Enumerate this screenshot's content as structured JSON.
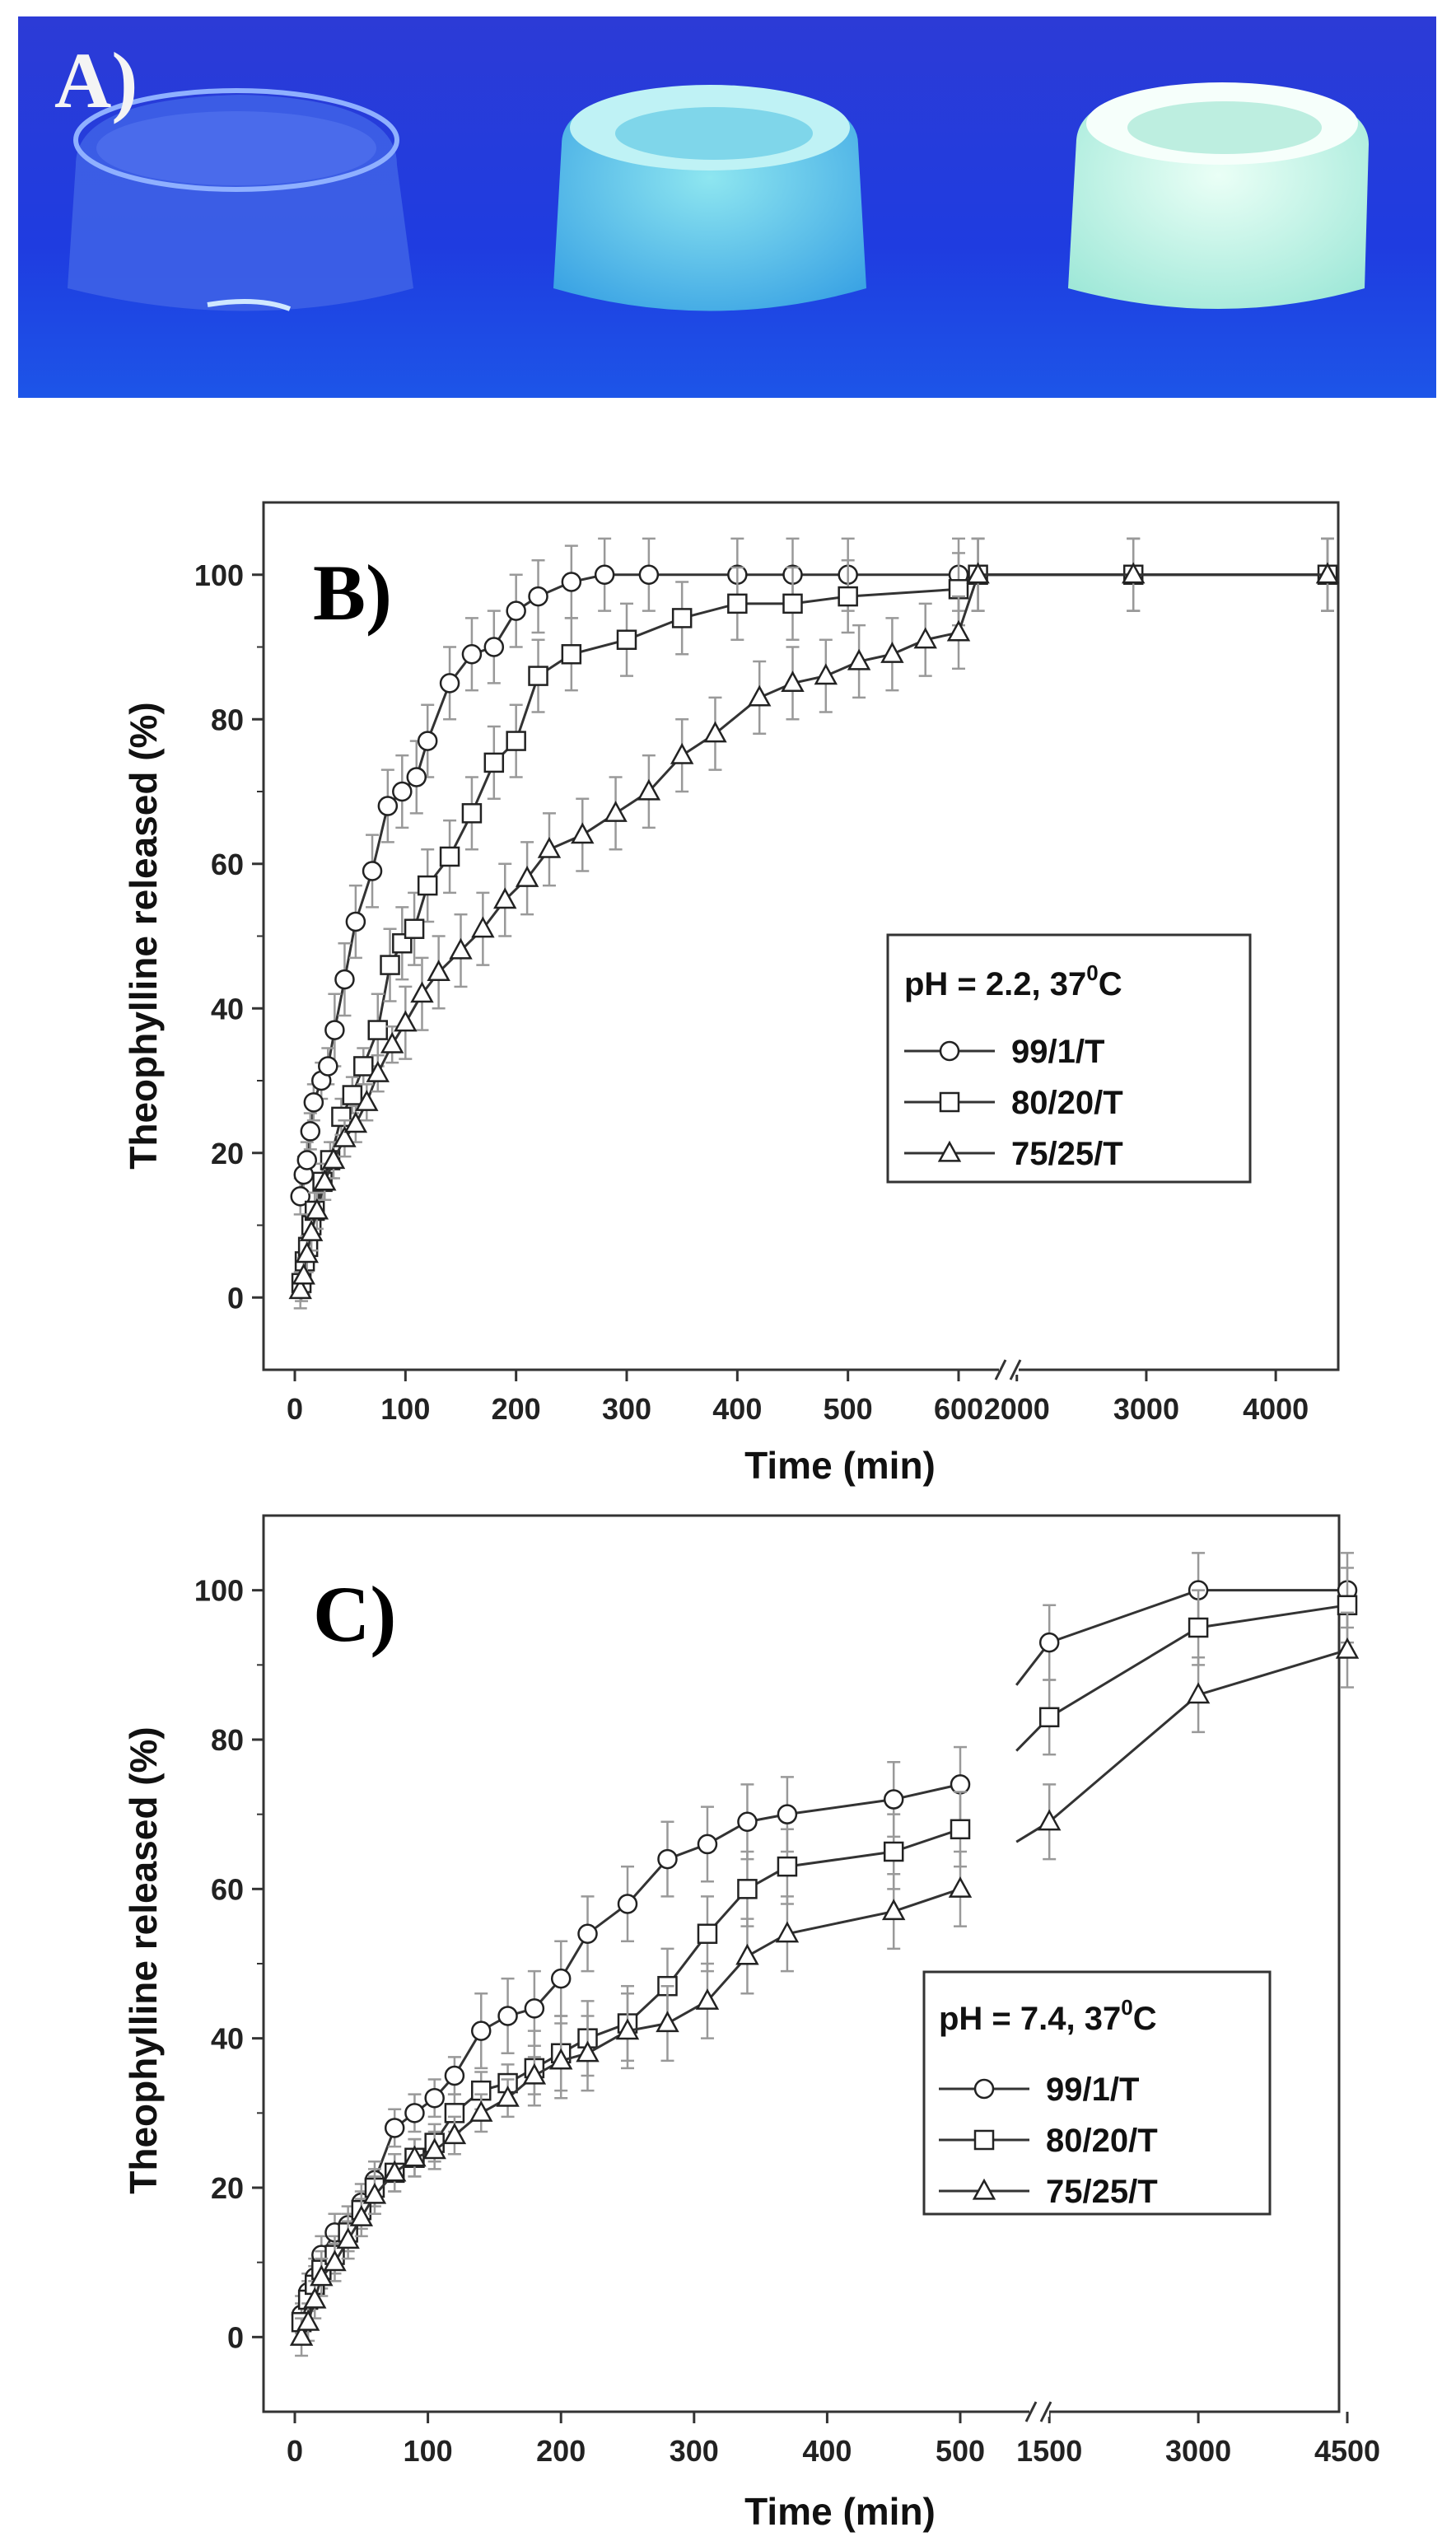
{
  "panels": {
    "a": {
      "label": "A)"
    }
  },
  "chart_data": [
    {
      "panel_label": "B)",
      "type": "line",
      "xlabel": "Time (min)",
      "ylabel": "Theophylline released (%)",
      "ylim": [
        -10,
        110
      ],
      "y_ticks": [
        "0",
        "20",
        "40",
        "60",
        "80",
        "100"
      ],
      "x_ticks_left": [
        "0",
        "100",
        "200",
        "300",
        "400",
        "500",
        "600"
      ],
      "x_ticks_right": [
        "2000",
        "3000",
        "4000"
      ],
      "x_break": true,
      "legend": {
        "title_main": "pH = 2.2, 37",
        "title_sup": "0",
        "title_end": "C",
        "entries": [
          "99/1/T",
          "80/20/T",
          "75/25/T"
        ]
      },
      "series": [
        {
          "name": "99/1/T",
          "marker": "circle",
          "points": [
            [
              5,
              14
            ],
            [
              8,
              17
            ],
            [
              11,
              19
            ],
            [
              14,
              23
            ],
            [
              17,
              27
            ],
            [
              24,
              30
            ],
            [
              30,
              32
            ],
            [
              36,
              37
            ],
            [
              45,
              44
            ],
            [
              55,
              52
            ],
            [
              70,
              59
            ],
            [
              84,
              68
            ],
            [
              97,
              70
            ],
            [
              110,
              72
            ],
            [
              120,
              77
            ],
            [
              140,
              85
            ],
            [
              160,
              89
            ],
            [
              180,
              90
            ],
            [
              200,
              95
            ],
            [
              220,
              97
            ],
            [
              250,
              99
            ],
            [
              280,
              100
            ],
            [
              320,
              100
            ],
            [
              400,
              100
            ],
            [
              450,
              100
            ],
            [
              500,
              100
            ],
            [
              600,
              100
            ],
            [
              1700,
              100
            ],
            [
              2900,
              100
            ],
            [
              4400,
              100
            ]
          ]
        },
        {
          "name": "80/20/T",
          "marker": "square",
          "points": [
            [
              6,
              2
            ],
            [
              9,
              5
            ],
            [
              12,
              7
            ],
            [
              15,
              10
            ],
            [
              18,
              12
            ],
            [
              25,
              16
            ],
            [
              32,
              19
            ],
            [
              42,
              25
            ],
            [
              52,
              28
            ],
            [
              62,
              32
            ],
            [
              75,
              37
            ],
            [
              86,
              46
            ],
            [
              97,
              49
            ],
            [
              108,
              51
            ],
            [
              120,
              57
            ],
            [
              140,
              61
            ],
            [
              160,
              67
            ],
            [
              180,
              74
            ],
            [
              200,
              77
            ],
            [
              220,
              86
            ],
            [
              250,
              89
            ],
            [
              300,
              91
            ],
            [
              350,
              94
            ],
            [
              400,
              96
            ],
            [
              450,
              96
            ],
            [
              500,
              97
            ],
            [
              600,
              98
            ],
            [
              1700,
              100
            ],
            [
              2900,
              100
            ],
            [
              4400,
              100
            ]
          ]
        },
        {
          "name": "75/25/T",
          "marker": "triangle",
          "points": [
            [
              5,
              1
            ],
            [
              8,
              3
            ],
            [
              11,
              6
            ],
            [
              15,
              9
            ],
            [
              20,
              12
            ],
            [
              27,
              16
            ],
            [
              35,
              19
            ],
            [
              45,
              22
            ],
            [
              55,
              24
            ],
            [
              65,
              27
            ],
            [
              75,
              31
            ],
            [
              88,
              35
            ],
            [
              100,
              38
            ],
            [
              115,
              42
            ],
            [
              130,
              45
            ],
            [
              150,
              48
            ],
            [
              170,
              51
            ],
            [
              190,
              55
            ],
            [
              210,
              58
            ],
            [
              230,
              62
            ],
            [
              260,
              64
            ],
            [
              290,
              67
            ],
            [
              320,
              70
            ],
            [
              350,
              75
            ],
            [
              380,
              78
            ],
            [
              420,
              83
            ],
            [
              450,
              85
            ],
            [
              480,
              86
            ],
            [
              510,
              88
            ],
            [
              540,
              89
            ],
            [
              570,
              91
            ],
            [
              600,
              92
            ],
            [
              1700,
              100
            ],
            [
              2900,
              100
            ],
            [
              4400,
              100
            ]
          ]
        }
      ]
    },
    {
      "panel_label": "C)",
      "type": "line",
      "xlabel": "Time (min)",
      "ylabel": "Theophylline released (%)",
      "ylim": [
        -10,
        110
      ],
      "y_ticks": [
        "0",
        "20",
        "40",
        "60",
        "80",
        "100"
      ],
      "x_ticks_left": [
        "0",
        "100",
        "200",
        "300",
        "400",
        "500"
      ],
      "x_ticks_right": [
        "1500",
        "3000",
        "4500"
      ],
      "x_break": true,
      "legend": {
        "title_main": "pH = 7.4, 37",
        "title_sup": "0",
        "title_end": "C",
        "entries": [
          "99/1/T",
          "80/20/T",
          "75/25/T"
        ]
      },
      "series": [
        {
          "name": "99/1/T",
          "marker": "circle",
          "points": [
            [
              5,
              3
            ],
            [
              10,
              6
            ],
            [
              15,
              8
            ],
            [
              20,
              11
            ],
            [
              30,
              14
            ],
            [
              40,
              15
            ],
            [
              50,
              18
            ],
            [
              60,
              21
            ],
            [
              75,
              28
            ],
            [
              90,
              30
            ],
            [
              105,
              32
            ],
            [
              120,
              35
            ],
            [
              140,
              41
            ],
            [
              160,
              43
            ],
            [
              180,
              44
            ],
            [
              200,
              48
            ],
            [
              220,
              54
            ],
            [
              250,
              58
            ],
            [
              280,
              64
            ],
            [
              310,
              66
            ],
            [
              340,
              69
            ],
            [
              370,
              70
            ],
            [
              450,
              72
            ],
            [
              500,
              74
            ],
            [
              1500,
              93
            ],
            [
              3000,
              100
            ],
            [
              4500,
              100
            ]
          ]
        },
        {
          "name": "80/20/T",
          "marker": "square",
          "points": [
            [
              5,
              2
            ],
            [
              10,
              5
            ],
            [
              15,
              7
            ],
            [
              20,
              9
            ],
            [
              30,
              11
            ],
            [
              40,
              14
            ],
            [
              50,
              17
            ],
            [
              60,
              20
            ],
            [
              75,
              22
            ],
            [
              90,
              24
            ],
            [
              105,
              26
            ],
            [
              120,
              30
            ],
            [
              140,
              33
            ],
            [
              160,
              34
            ],
            [
              180,
              36
            ],
            [
              200,
              38
            ],
            [
              220,
              40
            ],
            [
              250,
              42
            ],
            [
              280,
              47
            ],
            [
              310,
              54
            ],
            [
              340,
              60
            ],
            [
              370,
              63
            ],
            [
              450,
              65
            ],
            [
              500,
              68
            ],
            [
              1500,
              83
            ],
            [
              3000,
              95
            ],
            [
              4500,
              98
            ]
          ]
        },
        {
          "name": "75/25/T",
          "marker": "triangle",
          "points": [
            [
              5,
              0
            ],
            [
              10,
              2
            ],
            [
              15,
              5
            ],
            [
              20,
              8
            ],
            [
              30,
              10
            ],
            [
              40,
              13
            ],
            [
              50,
              16
            ],
            [
              60,
              19
            ],
            [
              75,
              22
            ],
            [
              90,
              24
            ],
            [
              105,
              25
            ],
            [
              120,
              27
            ],
            [
              140,
              30
            ],
            [
              160,
              32
            ],
            [
              180,
              35
            ],
            [
              200,
              37
            ],
            [
              220,
              38
            ],
            [
              250,
              41
            ],
            [
              280,
              42
            ],
            [
              310,
              45
            ],
            [
              340,
              51
            ],
            [
              370,
              54
            ],
            [
              450,
              57
            ],
            [
              500,
              60
            ],
            [
              1500,
              69
            ],
            [
              3000,
              86
            ],
            [
              4500,
              92
            ]
          ]
        }
      ]
    }
  ]
}
